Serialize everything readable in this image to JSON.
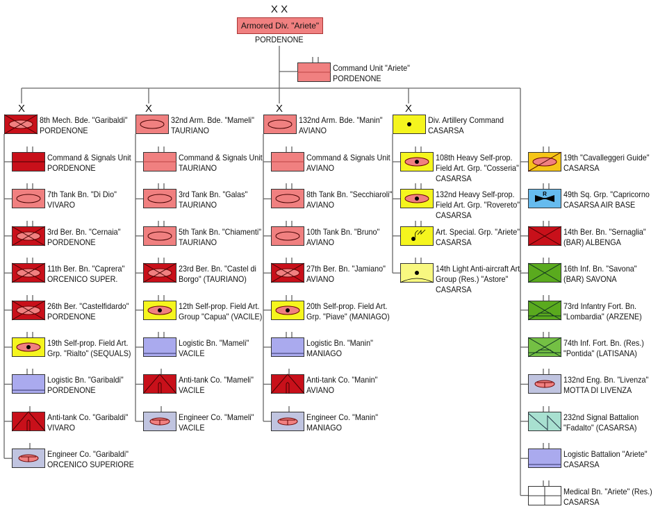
{
  "division": {
    "echelon": "X X",
    "name": "Armored Div. \"Ariete\"",
    "location": "PORDENONE"
  },
  "command_unit": {
    "lines": [
      "Command Unit \"Ariete\"",
      "PORDENONE"
    ],
    "symbol": "cmd-light",
    "size": "bn"
  },
  "colors": {
    "mech_red": "#c8101a",
    "armor_pink": "#f08080",
    "artillery_yellow": "#f5f51e",
    "logistic": "#aaaaee",
    "engineer": "#c0c4e0",
    "infantry_green": "#5aaa1e",
    "cavalry": "#f5c518",
    "air_force": "#66bbee",
    "signal": "#a8e0d0"
  },
  "columns": [
    {
      "hq": {
        "echelon": "X",
        "lines": [
          "8th Mech. Bde. \"Garibaldi\"",
          "PORDENONE"
        ],
        "symbol": "mech"
      },
      "units": [
        {
          "lines": [
            "Command & Signals Unit",
            "PORDENONE"
          ],
          "symbol": "cmd-dark",
          "size": "bn"
        },
        {
          "lines": [
            "7th Tank Bn. \"Di Dio\"",
            "VIVARO"
          ],
          "symbol": "tank",
          "size": "bn"
        },
        {
          "lines": [
            "3rd Ber. Bn. \"Cernaia\"",
            "PORDENONE"
          ],
          "symbol": "mech",
          "size": "bn"
        },
        {
          "lines": [
            "11th Ber. Bn. \"Caprera\"",
            "ORCENICO SUPER."
          ],
          "symbol": "mech",
          "size": "bn"
        },
        {
          "lines": [
            "26th Ber. \"Castelfidardo\"",
            "PORDENONE"
          ],
          "symbol": "mech",
          "size": "bn"
        },
        {
          "lines": [
            "19th Self-prop. Field Art.",
            "Grp. \"Rialto\" (SEQUALS)"
          ],
          "symbol": "sp-art",
          "size": "bn"
        },
        {
          "lines": [
            "Logistic Bn. \"Garibaldi\"",
            "PORDENONE"
          ],
          "symbol": "logistic",
          "size": "bn"
        },
        {
          "lines": [
            "Anti-tank Co. \"Garibaldi\"",
            "VIVARO"
          ],
          "symbol": "antitank",
          "size": "co"
        },
        {
          "lines": [
            "Engineer Co. \"Garibaldi\"",
            "ORCENICO SUPERIORE"
          ],
          "symbol": "engineer",
          "size": "co"
        }
      ]
    },
    {
      "hq": {
        "echelon": "X",
        "lines": [
          "32nd Arm. Bde. \"Mameli\"",
          "TAURIANO"
        ],
        "symbol": "tank"
      },
      "units": [
        {
          "lines": [
            "Command & Signals Unit",
            "TAURIANO"
          ],
          "symbol": "cmd-light",
          "size": "bn"
        },
        {
          "lines": [
            "3rd Tank Bn. \"Galas\"",
            "TAURIANO"
          ],
          "symbol": "tank",
          "size": "bn"
        },
        {
          "lines": [
            "5th Tank Bn. \"Chiamenti\"",
            "TAURIANO"
          ],
          "symbol": "tank",
          "size": "bn"
        },
        {
          "lines": [
            "23rd Ber. Bn. \"Castel di",
            "Borgo\" (TAURIANO)"
          ],
          "symbol": "mech",
          "size": "bn"
        },
        {
          "lines": [
            "12th Self-prop. Field Art.",
            "Group \"Capua\" (VACILE)"
          ],
          "symbol": "sp-art",
          "size": "bn"
        },
        {
          "lines": [
            "Logistic Bn. \"Mameli\"",
            "VACILE"
          ],
          "symbol": "logistic",
          "size": "bn"
        },
        {
          "lines": [
            "Anti-tank Co. \"Mameli\"",
            "VACILE"
          ],
          "symbol": "antitank",
          "size": "co"
        },
        {
          "lines": [
            "Engineer Co. \"Mameli\"",
            "VACILE"
          ],
          "symbol": "engineer",
          "size": "co"
        }
      ]
    },
    {
      "hq": {
        "echelon": "X",
        "lines": [
          "132nd Arm. Bde. \"Manin\"",
          "AVIANO"
        ],
        "symbol": "tank"
      },
      "units": [
        {
          "lines": [
            "Command & Signals Unit",
            "AVIANO"
          ],
          "symbol": "cmd-light",
          "size": "bn"
        },
        {
          "lines": [
            "8th Tank Bn. \"Secchiaroli\"",
            "AVIANO"
          ],
          "symbol": "tank",
          "size": "bn"
        },
        {
          "lines": [
            "10th Tank Bn. \"Bruno\"",
            "AVIANO"
          ],
          "symbol": "tank",
          "size": "bn"
        },
        {
          "lines": [
            "27th Ber. Bn. \"Jamiano\"",
            "AVIANO"
          ],
          "symbol": "mech",
          "size": "bn"
        },
        {
          "lines": [
            "20th Self-prop. Field Art.",
            "Grp. \"Piave\" (MANIAGO)"
          ],
          "symbol": "sp-art",
          "size": "bn"
        },
        {
          "lines": [
            "Logistic Bn. \"Manin\"",
            "MANIAGO"
          ],
          "symbol": "logistic",
          "size": "bn"
        },
        {
          "lines": [
            "Anti-tank Co. \"Manin\"",
            "AVIANO"
          ],
          "symbol": "antitank",
          "size": "co"
        },
        {
          "lines": [
            "Engineer Co. \"Manin\"",
            "MANIAGO"
          ],
          "symbol": "engineer",
          "size": "co"
        }
      ]
    },
    {
      "hq": {
        "echelon": "X",
        "lines": [
          "Div. Artillery Command",
          "CASARSA"
        ],
        "symbol": "art"
      },
      "units": [
        {
          "lines": [
            "108th Heavy Self-prop.",
            "Field  Art. Grp. \"Cosseria\"",
            "CASARSA"
          ],
          "symbol": "sp-art",
          "size": "bn"
        },
        {
          "lines": [
            "132nd Heavy Self-prop.",
            "Field  Art. Grp. \"Rovereto\"",
            "CASARSA"
          ],
          "symbol": "sp-art",
          "size": "bn"
        },
        {
          "lines": [
            "Art. Special. Grp. \"Ariete\"",
            "CASARSA"
          ],
          "symbol": "special",
          "size": "bn"
        },
        {
          "lines": [
            "14th Light Anti-aircraft Art.",
            "Group (Res.) \"Astore\"",
            "CASARSA"
          ],
          "symbol": "aa",
          "size": "bn"
        }
      ]
    },
    {
      "hq": null,
      "units": [
        {
          "lines": [
            "19th \"Cavalleggeri Guide\"",
            "CASARSA"
          ],
          "symbol": "cavalry",
          "size": "bn"
        },
        {
          "lines": [
            "49th Sq. Grp. \"Capricorno",
            "CASARSA AIR BASE"
          ],
          "symbol": "air",
          "size": "bn",
          "mark": "R"
        },
        {
          "lines": [
            "14th Ber. Bn. \"Sernaglia\"",
            "(BAR) ALBENGA"
          ],
          "symbol": "red-x",
          "size": "bn"
        },
        {
          "lines": [
            "16th Inf. Bn. \"Savona\"",
            "(BAR) SAVONA"
          ],
          "symbol": "green-x",
          "size": "bn"
        },
        {
          "lines": [
            "73rd Infantry Fort. Bn.",
            "\"Lombardia\" (ARZENE)"
          ],
          "symbol": "fort",
          "size": "bn"
        },
        {
          "lines": [
            "74th Inf. Fort. Bn. (Res.)",
            "\"Pontida\" (LATISANA)"
          ],
          "symbol": "fort-light",
          "size": "bn"
        },
        {
          "lines": [
            "132nd Eng. Bn. \"Livenza\"",
            "MOTTA DI LIVENZA"
          ],
          "symbol": "engineer",
          "size": "bn"
        },
        {
          "lines": [
            "232nd Signal Battalion",
            "\"Fadalto\" (CASARSA)"
          ],
          "symbol": "signal",
          "size": "bn"
        },
        {
          "lines": [
            "Logistic Battalion \"Ariete\"",
            "CASARSA"
          ],
          "symbol": "logistic",
          "size": "bn"
        },
        {
          "lines": [
            "Medical Bn. \"Ariete\" (Res.)",
            "CASARSA"
          ],
          "symbol": "medical",
          "size": "bn"
        }
      ]
    }
  ]
}
